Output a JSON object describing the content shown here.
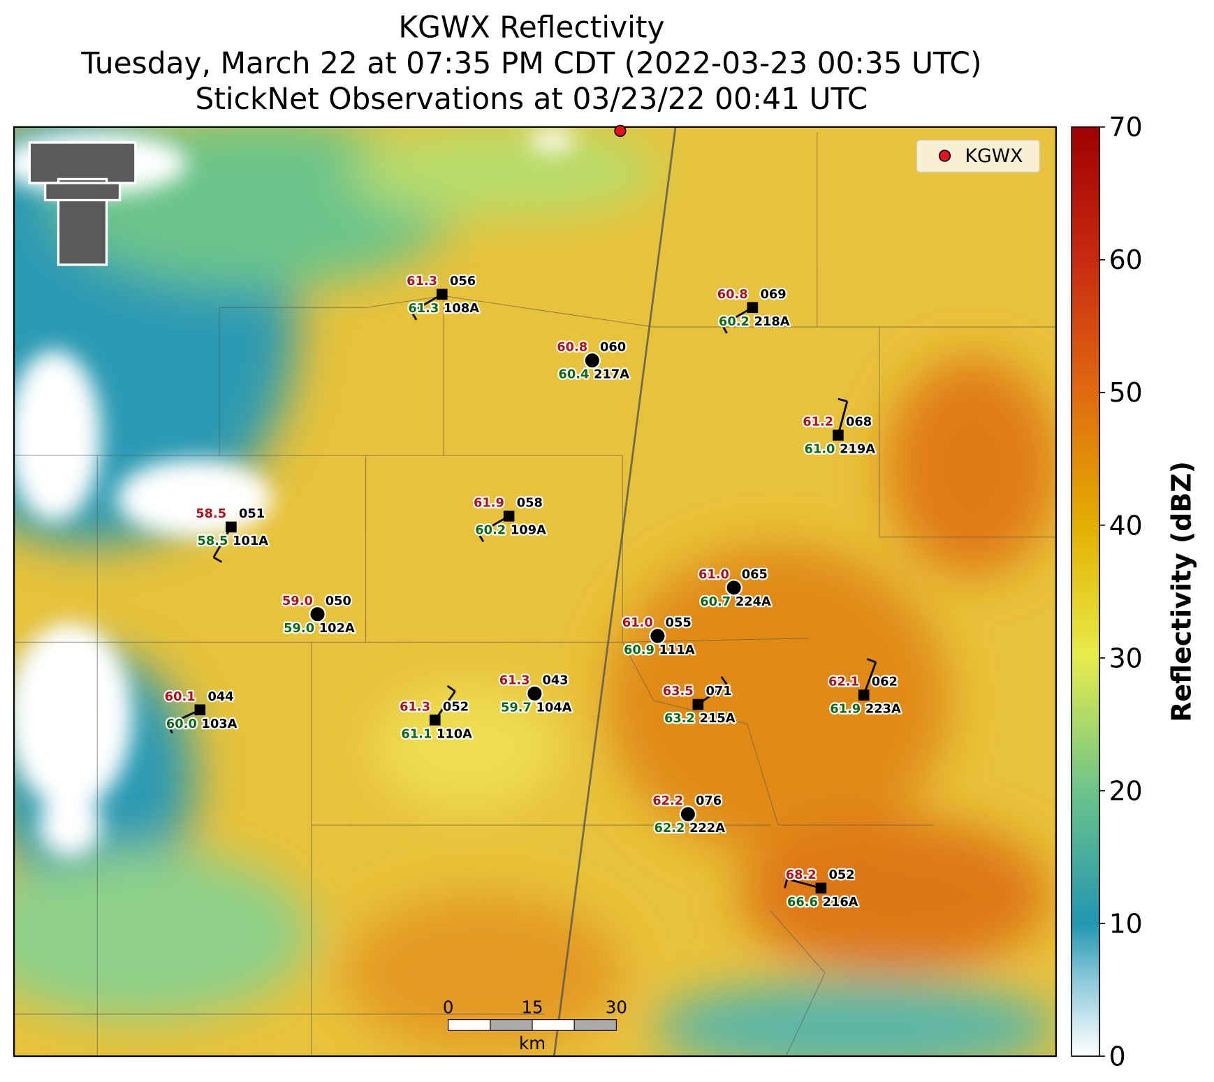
{
  "map": {
    "title": [
      "KGWX Reflectivity",
      "Tuesday, March 22 at 07:35 PM CDT (2022-03-23 00:35 UTC)",
      "StickNet Observations at 03/23/22 00:41 UTC"
    ],
    "legend_label": "KGWX",
    "colorbar": {
      "label": "Reflectivity (dBZ)",
      "lim": [
        0,
        70
      ],
      "ticks": [
        0,
        10,
        20,
        30,
        40,
        50,
        60,
        70
      ]
    },
    "scale_bar": {
      "ticks": [
        "0",
        "15",
        "30"
      ],
      "unit": "km"
    },
    "stations": [
      {
        "temp": "61.3",
        "dew": "61.3",
        "id": "056",
        "name": "108A",
        "marker": "square"
      },
      {
        "temp": "60.8",
        "dew": "60.2",
        "id": "069",
        "name": "218A",
        "marker": "square"
      },
      {
        "temp": "60.8",
        "dew": "60.4",
        "id": "060",
        "name": "217A",
        "marker": "circle"
      },
      {
        "temp": "61.2",
        "dew": "61.0",
        "id": "068",
        "name": "219A",
        "marker": "square"
      },
      {
        "temp": "61.9",
        "dew": "60.2",
        "id": "058",
        "name": "109A",
        "marker": "square"
      },
      {
        "temp": "58.5",
        "dew": "58.5",
        "id": "051",
        "name": "101A",
        "marker": "square"
      },
      {
        "temp": "61.0",
        "dew": "60.7",
        "id": "065",
        "name": "224A",
        "marker": "circle"
      },
      {
        "temp": "59.0",
        "dew": "59.0",
        "id": "050",
        "name": "102A",
        "marker": "circle"
      },
      {
        "temp": "61.0",
        "dew": "60.9",
        "id": "055",
        "name": "111A",
        "marker": "circle"
      },
      {
        "temp": "61.3",
        "dew": "59.7",
        "id": "043",
        "name": "104A",
        "marker": "circle"
      },
      {
        "temp": "63.5",
        "dew": "63.2",
        "id": "071",
        "name": "215A",
        "marker": "square"
      },
      {
        "temp": "62.1",
        "dew": "61.9",
        "id": "062",
        "name": "223A",
        "marker": "square"
      },
      {
        "temp": "60.1",
        "dew": "60.0",
        "id": "044",
        "name": "103A",
        "marker": "square"
      },
      {
        "temp": "61.3",
        "dew": "61.1",
        "id": "052",
        "name": "110A",
        "marker": "square"
      },
      {
        "temp": "62.2",
        "dew": "62.2",
        "id": "076",
        "name": "222A",
        "marker": "circle"
      },
      {
        "temp": "68.2",
        "dew": "66.6",
        "id": "052",
        "name": "216A",
        "marker": "square"
      }
    ]
  }
}
